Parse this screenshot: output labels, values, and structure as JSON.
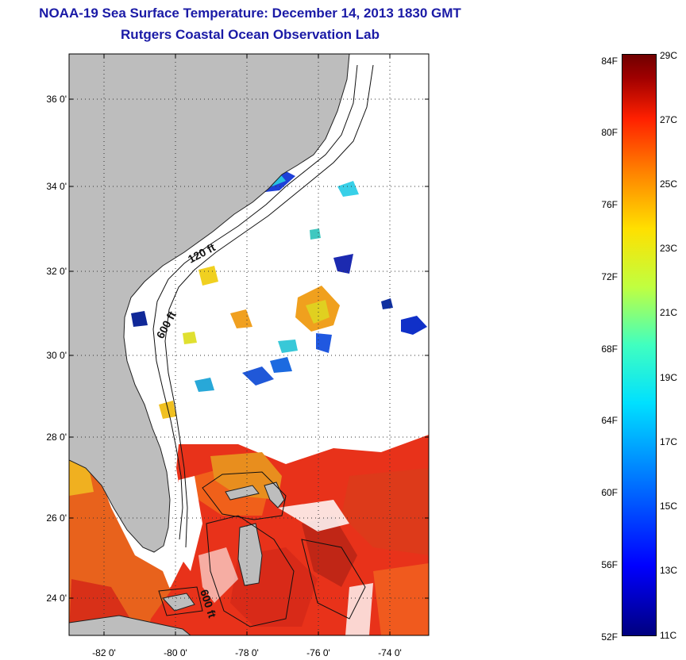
{
  "header": {
    "title": "NOAA-19 Sea Surface Temperature:  December 14, 2013 1830 GMT",
    "subtitle": "Rutgers Coastal Ocean Observation Lab"
  },
  "map": {
    "lat_ticks": [
      "36 0'",
      "34 0'",
      "32 0'",
      "30 0'",
      "28 0'",
      "26 0'",
      "24 0'"
    ],
    "lon_ticks": [
      "-82 0'",
      "-80 0'",
      "-78 0'",
      "-76 0'",
      "-74 0'"
    ],
    "contours": [
      "120 ft",
      "600 ft",
      "600 ft"
    ],
    "land_color": "#bdbdbd"
  },
  "colorbar": {
    "fahrenheit": [
      "84F",
      "80F",
      "76F",
      "72F",
      "68F",
      "64F",
      "60F",
      "56F",
      "52F"
    ],
    "celsius": [
      "29C",
      "27C",
      "25C",
      "23C",
      "21C",
      "19C",
      "17C",
      "15C",
      "13C",
      "11C"
    ]
  }
}
